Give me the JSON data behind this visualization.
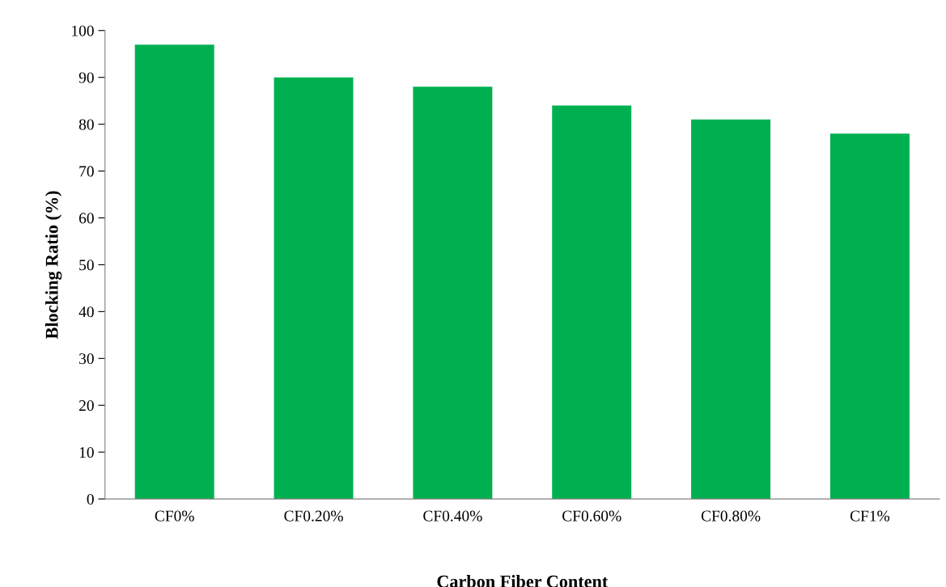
{
  "chart_data": {
    "type": "bar",
    "xlabel": "Carbon Fiber Content",
    "ylabel": "Blocking Ratio (%)",
    "categories": [
      "CF0%",
      "CF0.20%",
      "CF0.40%",
      "CF0.60%",
      "CF0.80%",
      "CF1%"
    ],
    "values": [
      97,
      90,
      88,
      84,
      81,
      78
    ],
    "color": "#00b050",
    "ylim": [
      0,
      100
    ],
    "yticks": [
      0,
      10,
      20,
      30,
      40,
      50,
      60,
      70,
      80,
      90,
      100
    ],
    "grid": false,
    "legend": false
  }
}
